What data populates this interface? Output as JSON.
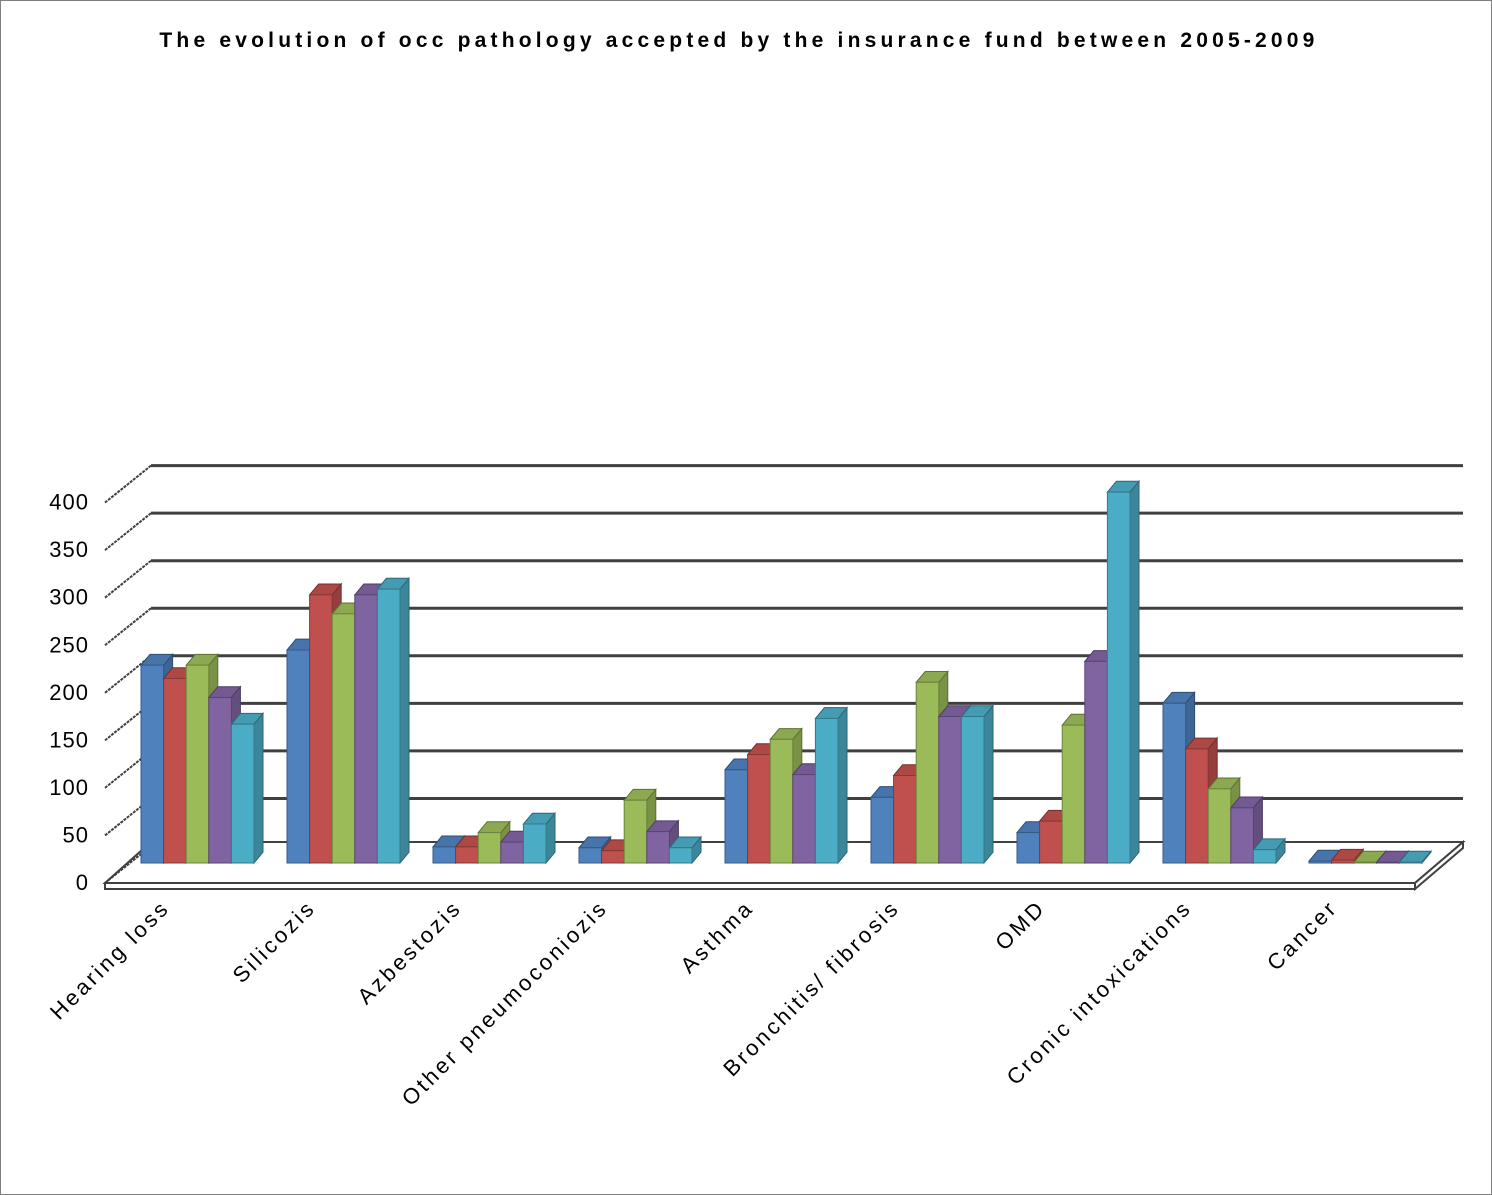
{
  "chart_data": {
    "type": "bar",
    "title": "The evolution of occ pathology accepted by the insurance fund between 2005-2009",
    "xlabel": "",
    "ylabel": "",
    "ylim": [
      0,
      400
    ],
    "yticks": [
      0,
      50,
      100,
      150,
      200,
      250,
      300,
      350,
      400
    ],
    "grid": true,
    "legend": "none",
    "categories": [
      "Hearing loss",
      "Silicozis",
      "Azbestozis",
      "Other pneumoconiozis",
      "Asthma",
      "Bronchitis/ fibrosis",
      "OMD",
      "Cronic intoxications",
      "Cancer"
    ],
    "series": [
      {
        "color": "#4F81BD",
        "values": [
          208,
          224,
          17,
          16,
          98,
          69,
          32,
          168,
          2
        ]
      },
      {
        "color": "#C0504D",
        "values": [
          194,
          282,
          17,
          13,
          114,
          92,
          44,
          120,
          3
        ]
      },
      {
        "color": "#9BBB59",
        "values": [
          208,
          262,
          32,
          66,
          130,
          190,
          145,
          78,
          0
        ]
      },
      {
        "color": "#8064A2",
        "values": [
          174,
          282,
          22,
          33,
          93,
          154,
          212,
          58,
          1
        ]
      },
      {
        "color": "#4BACC6",
        "values": [
          146,
          288,
          41,
          16,
          152,
          154,
          390,
          14,
          1
        ]
      }
    ]
  }
}
